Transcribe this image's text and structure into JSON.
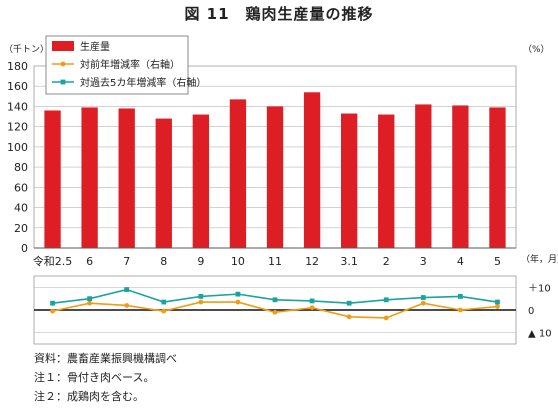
{
  "title": "図 11　鶏肉生産量の推移",
  "notes": [
    "資料：農畜産業振興機構調べ",
    "注１：骨付き肉ベース。",
    "注２：成鶏肉を含む。"
  ],
  "chart_data": {
    "type": "bar",
    "categories": [
      "令和2.5",
      "6",
      "7",
      "8",
      "9",
      "10",
      "11",
      "12",
      "3.1",
      "2",
      "3",
      "4",
      "5"
    ],
    "x_end_label": "（年，月）",
    "left_unit": "（千トン）",
    "right_unit": "（%）",
    "ylim": [
      0,
      180
    ],
    "yticks": [
      0,
      20,
      40,
      60,
      80,
      100,
      120,
      140,
      160,
      180
    ],
    "secondary_ticks": [
      {
        "value": 10,
        "label": "＋10"
      },
      {
        "value": 0,
        "label": "0"
      },
      {
        "value": -10,
        "label": "▲ 10"
      }
    ],
    "secondary_ylim": [
      -15,
      15
    ],
    "series": [
      {
        "name": "生産量",
        "kind": "bar",
        "color": "#dd1f25",
        "values": [
          136,
          139,
          138,
          128,
          132,
          147,
          140,
          154,
          133,
          132,
          142,
          141,
          139
        ]
      },
      {
        "name": "対前年増減率（右軸）",
        "kind": "line",
        "color": "#f39c12",
        "values": [
          -0.5,
          3,
          2,
          -0.5,
          3.5,
          3.5,
          -1,
          1,
          -3,
          -3.5,
          3,
          0,
          1.5
        ]
      },
      {
        "name": "対過去5カ年増減率（右軸）",
        "kind": "line",
        "color": "#1aa3a3",
        "values": [
          3,
          5,
          9,
          3.5,
          6,
          7,
          4.5,
          4,
          3,
          4.5,
          5.5,
          6,
          3.5
        ]
      }
    ]
  }
}
